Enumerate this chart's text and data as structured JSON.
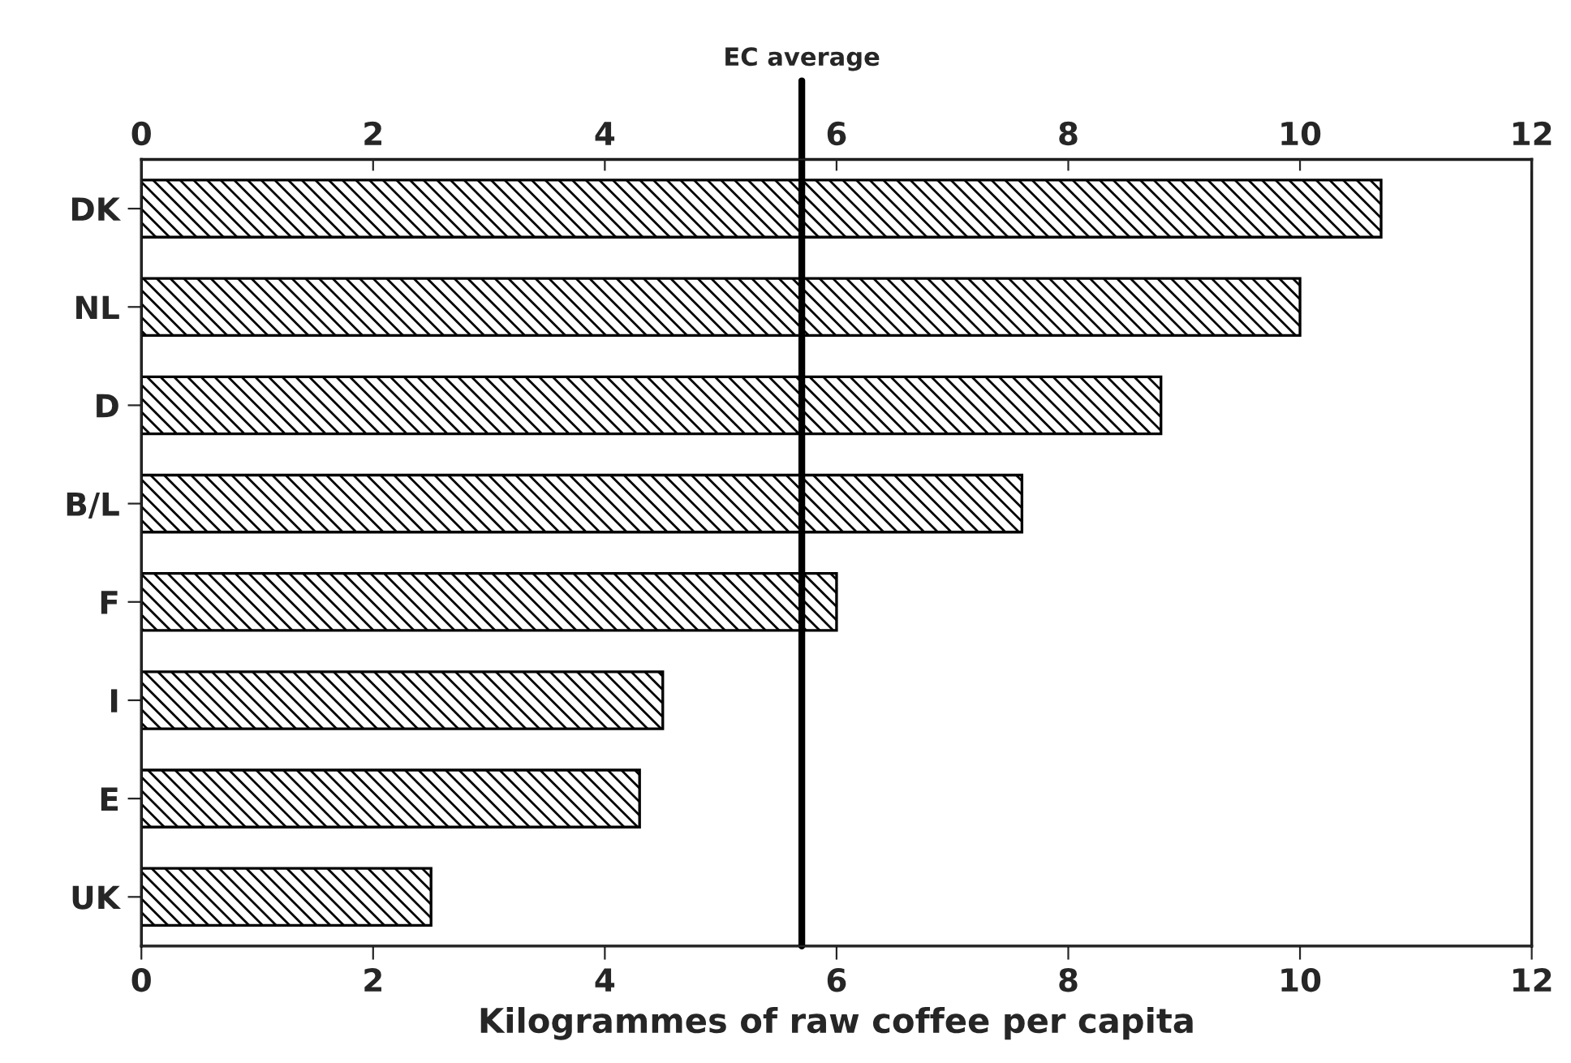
{
  "chart_data": {
    "type": "bar",
    "orientation": "horizontal",
    "xlabel": "Kilogrammes of raw coffee per capita",
    "categories": [
      "DK",
      "NL",
      "D",
      "B/L",
      "F",
      "I",
      "E",
      "UK"
    ],
    "values": [
      10.7,
      10.0,
      8.8,
      7.6,
      6.0,
      4.5,
      4.3,
      2.5
    ],
    "color": "#000000",
    "xlim": [
      0,
      12
    ],
    "xticks": [
      0,
      2,
      4,
      6,
      8,
      10,
      12
    ],
    "x2lim": [
      0,
      12
    ],
    "x2ticks": [
      0,
      2,
      4,
      6,
      8,
      10,
      12
    ],
    "ref_lines": [
      {
        "axis": "x",
        "value": 5.7,
        "label": "EC average",
        "color": "#000000"
      }
    ],
    "grid": false,
    "legend": false
  }
}
